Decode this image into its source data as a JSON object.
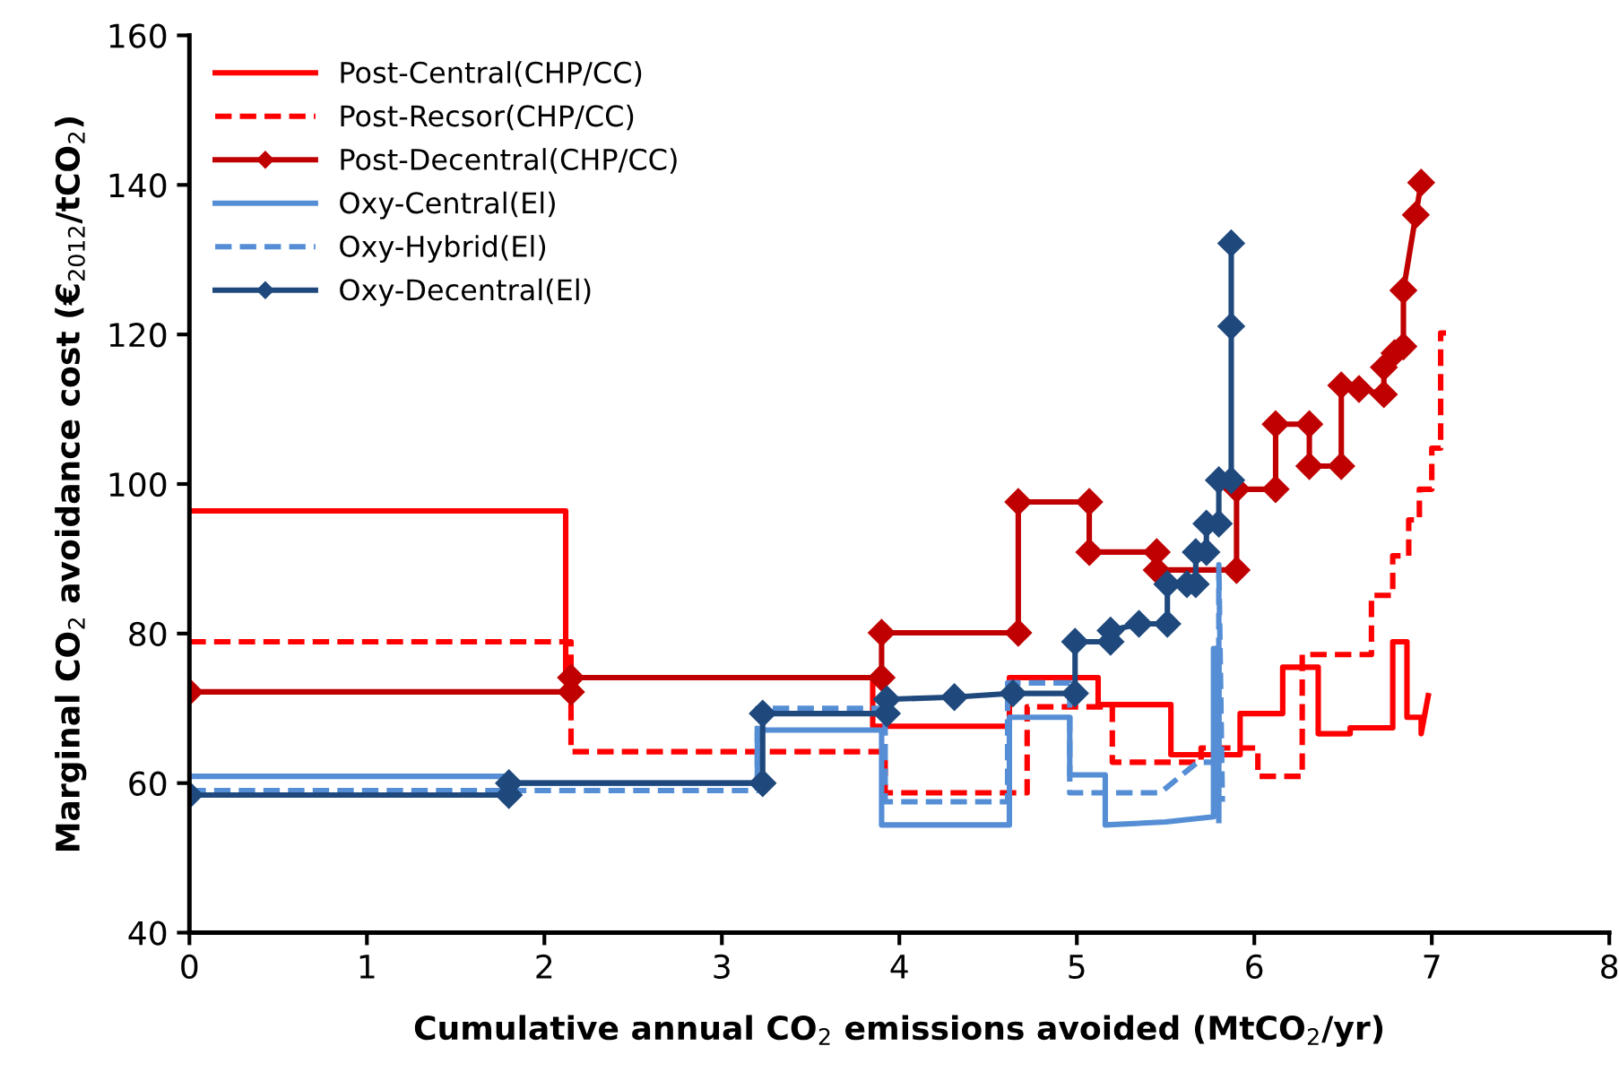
{
  "chart_data": {
    "type": "line",
    "xlabel": "Cumulative annual CO$_{2}$ emissions avoided (MtCO$_{2}$/yr)",
    "ylabel": "Marginal CO$_{2}$ avoidance cost (€$_{2012}$/tCO$_{2}$)",
    "xlim": [
      0,
      8
    ],
    "ylim": [
      40,
      160
    ],
    "xticks": [
      0,
      1,
      2,
      3,
      4,
      5,
      6,
      7,
      8
    ],
    "yticks": [
      40,
      60,
      80,
      100,
      120,
      140,
      160
    ],
    "grid": false,
    "legend": "top left",
    "series": [
      {
        "name": "Post-Central(CHP/CC)",
        "color": "#ff0000",
        "line_style": "solid",
        "marker": "none",
        "x": [
          0,
          2.12,
          2.12,
          3.85,
          3.85,
          4.62,
          4.62,
          5.12,
          5.12,
          5.53,
          5.53,
          5.92,
          5.92,
          6.16,
          6.16,
          6.36,
          6.36,
          6.54,
          6.54,
          6.78,
          6.78,
          6.86,
          6.86,
          6.94,
          6.94,
          6.98
        ],
        "values": [
          96.4,
          96.4,
          74.1,
          74.1,
          67.6,
          67.6,
          74.1,
          74.1,
          70.5,
          70.5,
          63.8,
          63.8,
          69.3,
          69.3,
          75.5,
          75.5,
          66.6,
          66.6,
          67.4,
          67.4,
          78.9,
          78.9,
          68.8,
          68.8,
          66.6,
          71.7
        ]
      },
      {
        "name": "Post-Recsor(CHP/CC)",
        "color": "#ff0000",
        "line_style": "dashed",
        "marker": "none",
        "x": [
          0,
          2.15,
          2.15,
          3.92,
          3.92,
          4.72,
          4.72,
          5.2,
          5.2,
          5.7,
          5.7,
          6.02,
          6.02,
          6.27,
          6.27,
          6.66,
          6.66,
          6.78,
          6.78,
          6.87,
          6.87,
          6.93,
          6.93,
          7.0,
          7.0,
          7.05,
          7.05,
          7.08
        ],
        "values": [
          78.9,
          78.9,
          64.2,
          64.2,
          58.7,
          58.7,
          70.2,
          70.2,
          62.8,
          62.8,
          64.7,
          64.7,
          60.9,
          60.9,
          77.2,
          77.2,
          85.1,
          85.1,
          90.4,
          90.4,
          95.2,
          95.2,
          99.3,
          99.3,
          104.8,
          104.8,
          120.2,
          120.2
        ]
      },
      {
        "name": "Post-Decentral(CHP/CC)",
        "color": "#c00000",
        "line_style": "solid",
        "marker": "diamond",
        "x": [
          0,
          2.15,
          2.15,
          3.9,
          3.9,
          4.67,
          4.67,
          5.07,
          5.07,
          5.45,
          5.45,
          5.9,
          5.9,
          6.12,
          6.12,
          6.31,
          6.31,
          6.49,
          6.49,
          6.59,
          6.73,
          6.73,
          6.79,
          6.84,
          6.84,
          6.91,
          6.94
        ],
        "values": [
          72.2,
          72.2,
          74.1,
          74.1,
          80.1,
          80.1,
          97.6,
          97.6,
          90.9,
          90.9,
          88.5,
          88.5,
          99.3,
          99.3,
          108,
          108,
          102.4,
          102.4,
          113.2,
          112.7,
          112,
          115.6,
          117.5,
          118.4,
          125.9,
          136,
          140.3
        ]
      },
      {
        "name": "Oxy-Central(El)",
        "color": "#558ed5",
        "line_style": "solid",
        "marker": "none",
        "x": [
          0,
          1.8,
          1.8,
          3.2,
          3.2,
          3.9,
          3.9,
          4.62,
          4.62,
          4.96,
          4.96,
          5.16,
          5.16,
          5.5,
          5.77,
          5.77,
          5.8,
          5.8
        ],
        "values": [
          60.9,
          60.9,
          60,
          60,
          67.1,
          67.1,
          54.4,
          54.4,
          68.8,
          68.8,
          61.1,
          61.1,
          54.4,
          54.8,
          55.5,
          78,
          78,
          55
        ]
      },
      {
        "name": "Oxy-Hybrid(El)",
        "color": "#558ed5",
        "line_style": "dashed",
        "marker": "none",
        "x": [
          0,
          3.2,
          3.2,
          3.92,
          3.92,
          4.61,
          4.61,
          4.96,
          4.96,
          5.47,
          5.68,
          5.8,
          5.8,
          5.82
        ],
        "values": [
          59,
          59,
          70,
          70,
          57.5,
          57.5,
          73.4,
          73.4,
          58.7,
          58.7,
          62.8,
          62.8,
          89.2,
          57.5
        ]
      },
      {
        "name": "Oxy-Decentral(El)",
        "color": "#1f497d",
        "line_style": "solid",
        "marker": "diamond",
        "x": [
          0,
          1.8,
          1.8,
          3.23,
          3.23,
          3.93,
          3.93,
          4.31,
          4.64,
          4.99,
          4.99,
          5.19,
          5.19,
          5.35,
          5.51,
          5.51,
          5.62,
          5.67,
          5.67,
          5.73,
          5.73,
          5.8,
          5.8,
          5.87,
          5.87,
          5.87
        ],
        "values": [
          58.4,
          58.4,
          60,
          60,
          69.3,
          69.3,
          71.2,
          71.5,
          72,
          72,
          78.9,
          78.9,
          80.4,
          81.3,
          81.3,
          86.6,
          86.6,
          86.6,
          90.9,
          90.9,
          94.7,
          94.7,
          100.5,
          100.5,
          121.1,
          132.2
        ]
      }
    ]
  }
}
